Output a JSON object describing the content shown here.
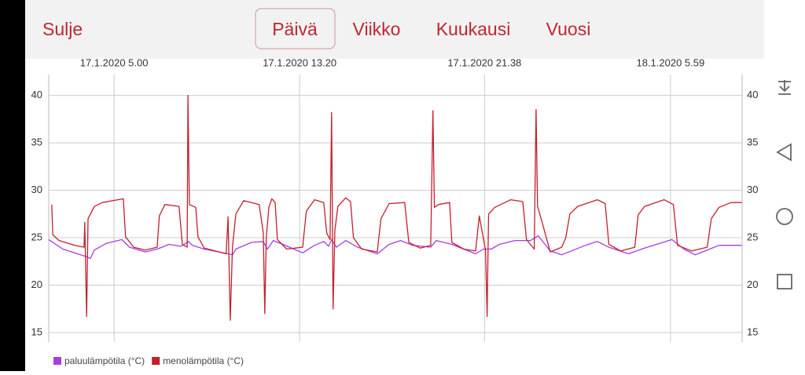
{
  "app_bar": {
    "close": "Sulje",
    "tabs": [
      "Päivä",
      "Viikko",
      "Kuukausi",
      "Vuosi"
    ]
  },
  "chart_data": {
    "type": "line",
    "xlim": [
      124,
      1992
    ],
    "xticks": [
      {
        "value": 300,
        "label": "17.1.2020 5.00"
      },
      {
        "value": 800,
        "label": "17.1.2020 13.20"
      },
      {
        "value": 1298,
        "label": "17.1.2020 21.38"
      },
      {
        "value": 1799,
        "label": "18.1.2020 5.59"
      }
    ],
    "ylim": [
      14,
      42.2
    ],
    "yticks": [
      15,
      20,
      25,
      30,
      35,
      40
    ],
    "grid": true,
    "series": [
      {
        "name": "paluulämpötila (°C)",
        "color": "#a93be6",
        "x": [
          124,
          162,
          226,
          236,
          247,
          279,
          321,
          342,
          384,
          416,
          448,
          480,
          501,
          511,
          543,
          607,
          619,
          628,
          670,
          702,
          713,
          729,
          755,
          808,
          840,
          865,
          878,
          886,
          899,
          924,
          956,
          1009,
          1041,
          1072,
          1104,
          1153,
          1168,
          1210,
          1274,
          1295,
          1316,
          1338,
          1380,
          1422,
          1443,
          1475,
          1506,
          1570,
          1602,
          1633,
          1686,
          1729,
          1803,
          1835,
          1866,
          1930,
          1991
        ],
        "values": [
          24.8,
          23.8,
          23.0,
          22.8,
          23.7,
          24.4,
          24.8,
          24.0,
          23.5,
          23.8,
          24.3,
          24.1,
          24.6,
          24.2,
          23.8,
          23.3,
          23.2,
          23.8,
          24.5,
          24.6,
          23.8,
          24.7,
          24.3,
          23.4,
          24.2,
          24.6,
          24.1,
          24.8,
          24.0,
          24.7,
          24.0,
          23.3,
          24.3,
          24.7,
          24.2,
          24.0,
          24.7,
          24.3,
          23.3,
          23.8,
          23.8,
          24.3,
          24.7,
          24.7,
          25.2,
          23.6,
          23.2,
          24.2,
          24.6,
          24.0,
          23.3,
          23.9,
          24.8,
          23.8,
          23.2,
          24.2,
          24.2
        ]
      },
      {
        "name": "menolämpötila (°C)",
        "color": "#c41f2e",
        "x": [
          132,
          135,
          152,
          194,
          219,
          221,
          226,
          230,
          247,
          268,
          325,
          331,
          353,
          384,
          416,
          422,
          437,
          475,
          484,
          497,
          499,
          503,
          520,
          526,
          543,
          602,
          607,
          613,
          619,
          628,
          649,
          691,
          702,
          706,
          710,
          717,
          725,
          734,
          740,
          765,
          808,
          818,
          840,
          865,
          873,
          882,
          886,
          890,
          895,
          903,
          924,
          937,
          945,
          967,
          1009,
          1019,
          1041,
          1083,
          1094,
          1125,
          1153,
          1159,
          1163,
          1174,
          1204,
          1210,
          1242,
          1274,
          1284,
          1290,
          1301,
          1305,
          1309,
          1326,
          1369,
          1401,
          1411,
          1432,
          1437,
          1441,
          1454,
          1475,
          1506,
          1517,
          1528,
          1549,
          1602,
          1623,
          1633,
          1665,
          1703,
          1712,
          1729,
          1782,
          1807,
          1818,
          1856,
          1898,
          1909,
          1930,
          1962,
          1991
        ],
        "values": [
          28.5,
          25.3,
          24.7,
          24.2,
          24.0,
          26.6,
          16.7,
          27.0,
          28.3,
          28.7,
          29.1,
          25.1,
          24.0,
          23.7,
          24.0,
          27.3,
          28.5,
          28.3,
          24.3,
          24.0,
          40.0,
          28.5,
          28.2,
          25.1,
          23.9,
          23.3,
          27.2,
          16.3,
          24.0,
          27.5,
          28.9,
          28.5,
          25.5,
          17.0,
          25.0,
          28.2,
          29.1,
          28.7,
          24.8,
          23.8,
          24.0,
          27.8,
          29.0,
          28.7,
          25.5,
          24.8,
          38.2,
          17.5,
          25.8,
          28.3,
          29.2,
          28.8,
          25.0,
          23.8,
          23.5,
          27.0,
          28.6,
          28.7,
          24.5,
          23.9,
          24.2,
          38.4,
          28.2,
          28.5,
          28.7,
          24.5,
          23.8,
          23.6,
          27.3,
          26.0,
          23.6,
          16.7,
          27.5,
          28.2,
          29.0,
          28.8,
          24.8,
          23.8,
          38.5,
          28.3,
          26.5,
          23.5,
          24.0,
          25.0,
          27.5,
          28.3,
          29.0,
          28.6,
          24.3,
          23.6,
          24.0,
          27.4,
          28.3,
          29.0,
          28.5,
          24.2,
          23.6,
          24.0,
          27.0,
          28.2,
          28.7,
          28.7
        ]
      }
    ]
  }
}
